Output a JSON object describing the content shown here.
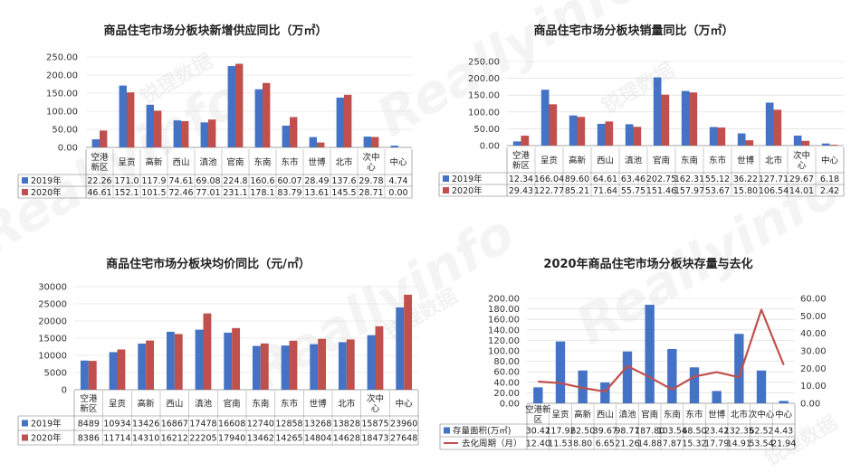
{
  "watermark": {
    "brand": "Reallyinfo",
    "cn": "锐理数据"
  },
  "colors": {
    "blue": "#4472C4",
    "red": "#C0504D",
    "grid": "#d9d9d9"
  },
  "chart_data": [
    {
      "type": "bar",
      "title": "商品住宅市场分板块新增供应同比（万㎡）",
      "categories": [
        "空港新区",
        "呈贡",
        "高新",
        "西山",
        "滇池",
        "官南",
        "东南",
        "东市",
        "世博",
        "北市",
        "次中心",
        "中心"
      ],
      "cat_lines": [
        [
          "空港",
          "新区"
        ],
        [
          "呈贡"
        ],
        [
          "高新"
        ],
        [
          "西山"
        ],
        [
          "滇池"
        ],
        [
          "官南"
        ],
        [
          "东南"
        ],
        [
          "东市"
        ],
        [
          "世博"
        ],
        [
          "北市"
        ],
        [
          "次中",
          "心"
        ],
        [
          "中心"
        ]
      ],
      "series": [
        {
          "name": "2019年",
          "color": "#4472C4",
          "values": [
            22.26,
            171.0,
            117.9,
            74.61,
            69.08,
            224.8,
            160.6,
            60.07,
            28.49,
            137.6,
            29.78,
            4.74
          ],
          "labels": [
            "22.26",
            "171.0",
            "117.9",
            "74.61",
            "69.08",
            "224.8",
            "160.6",
            "60.07",
            "28.49",
            "137.6",
            "29.78",
            "4.74"
          ]
        },
        {
          "name": "2020年",
          "color": "#C0504D",
          "values": [
            46.61,
            152.1,
            101.5,
            72.46,
            77.01,
            231.1,
            178.1,
            83.79,
            13.61,
            145.5,
            28.71,
            0.0
          ],
          "labels": [
            "46.61",
            "152.1",
            "101.5",
            "72.46",
            "77.01",
            "231.1",
            "178.1",
            "83.79",
            "13.61",
            "145.5",
            "28.71",
            "0.00"
          ]
        }
      ],
      "ylim": [
        0,
        250
      ],
      "yticks": [
        "0.00",
        "50.00",
        "100.00",
        "150.00",
        "200.00",
        "250.00"
      ]
    },
    {
      "type": "bar",
      "title": "商品住宅市场分板块销量同比（万㎡）",
      "categories": [
        "空港新区",
        "呈贡",
        "高新",
        "西山",
        "滇池",
        "官南",
        "东南",
        "东市",
        "世博",
        "北市",
        "次中心",
        "中心"
      ],
      "cat_lines": [
        [
          "空港",
          "新区"
        ],
        [
          "呈贡"
        ],
        [
          "高新"
        ],
        [
          "西山"
        ],
        [
          "滇池"
        ],
        [
          "官南"
        ],
        [
          "东南"
        ],
        [
          "东市"
        ],
        [
          "世博"
        ],
        [
          "北市"
        ],
        [
          "次中",
          "心"
        ],
        [
          "中心"
        ]
      ],
      "series": [
        {
          "name": "2019年",
          "color": "#4472C4",
          "values": [
            12.34,
            166.04,
            89.6,
            64.61,
            63.46,
            202.75,
            162.31,
            55.12,
            36.22,
            127.71,
            29.67,
            6.18
          ],
          "labels": [
            "12.34",
            "166.04",
            "89.60",
            "64.61",
            "63.46",
            "202.75",
            "162.31",
            "55.12",
            "36.22",
            "127.71",
            "29.67",
            "6.18"
          ]
        },
        {
          "name": "2020年",
          "color": "#C0504D",
          "values": [
            29.43,
            122.77,
            85.21,
            71.64,
            55.75,
            151.46,
            157.97,
            53.67,
            15.8,
            106.54,
            14.01,
            2.42
          ],
          "labels": [
            "29.43",
            "122.77",
            "85.21",
            "71.64",
            "55.75",
            "151.46",
            "157.97",
            "53.67",
            "15.80",
            "106.54",
            "14.01",
            "2.42"
          ]
        }
      ],
      "ylim": [
        0,
        250
      ],
      "yticks": [
        "0.00",
        "50.00",
        "100.00",
        "150.00",
        "200.00",
        "250.00"
      ]
    },
    {
      "type": "bar",
      "title": "商品住宅市场分板块均价同比（元/㎡）",
      "categories": [
        "空港新区",
        "呈贡",
        "高新",
        "西山",
        "滇池",
        "官南",
        "东南",
        "东市",
        "世博",
        "北市",
        "次中心",
        "中心"
      ],
      "cat_lines": [
        [
          "空港",
          "新区"
        ],
        [
          "呈贡"
        ],
        [
          "高新"
        ],
        [
          "西山"
        ],
        [
          "滇池"
        ],
        [
          "官南"
        ],
        [
          "东南"
        ],
        [
          "东市"
        ],
        [
          "世博"
        ],
        [
          "北市"
        ],
        [
          "次中",
          "心"
        ],
        [
          "中心"
        ]
      ],
      "series": [
        {
          "name": "2019年",
          "color": "#4472C4",
          "values": [
            8489,
            10934,
            13426,
            16867,
            17478,
            16608,
            12740,
            12858,
            13268,
            13828,
            15875,
            23960
          ],
          "labels": [
            "8489",
            "10934",
            "13426",
            "16867",
            "17478",
            "16608",
            "12740",
            "12858",
            "13268",
            "13828",
            "15875",
            "23960"
          ]
        },
        {
          "name": "2020年",
          "color": "#C0504D",
          "values": [
            8386,
            11714,
            14310,
            16212,
            22205,
            17940,
            13462,
            14265,
            14804,
            14628,
            18473,
            27648
          ],
          "labels": [
            "8386",
            "11714",
            "14310",
            "16212",
            "22205",
            "17940",
            "13462",
            "14265",
            "14804",
            "14628",
            "18473",
            "27648"
          ]
        }
      ],
      "ylim": [
        0,
        30000
      ],
      "yticks": [
        "0",
        "5000",
        "10000",
        "15000",
        "20000",
        "25000",
        "30000"
      ]
    },
    {
      "type": "bar+line",
      "title": "2020年商品住宅市场分板块存量与去化",
      "categories": [
        "空港新区",
        "呈贡",
        "高新",
        "西山",
        "滇池",
        "官南",
        "东南",
        "东市",
        "世博",
        "北市",
        "次中心",
        "中心"
      ],
      "cat_lines": [
        [
          "空港新",
          "区"
        ],
        [
          "呈贡"
        ],
        [
          "高新"
        ],
        [
          "西山"
        ],
        [
          "滇池"
        ],
        [
          "官南"
        ],
        [
          "东南"
        ],
        [
          "东市"
        ],
        [
          "世博"
        ],
        [
          "北市"
        ],
        [
          "次中心"
        ],
        [
          "中心"
        ]
      ],
      "series": [
        {
          "name": "存量面积(万㎡)",
          "type": "bar",
          "color": "#4472C4",
          "axis": "left",
          "values": [
            30.42,
            117.92,
            62.5,
            39.67,
            98.77,
            187.8,
            103.54,
            68.5,
            23.42,
            132.35,
            62.52,
            4.43
          ],
          "labels": [
            "30.42",
            "117.92",
            "62.50",
            "39.67",
            "98.77",
            "187.80",
            "103.54",
            "68.50",
            "23.42",
            "132.35",
            "62.52",
            "4.43"
          ]
        },
        {
          "name": "去化周期（月）",
          "type": "line",
          "color": "#C0504D",
          "axis": "right",
          "values": [
            12.4,
            11.53,
            8.8,
            6.65,
            21.26,
            14.88,
            7.87,
            15.32,
            17.79,
            14.91,
            53.54,
            21.94
          ],
          "labels": [
            "12.40",
            "11.53",
            "8.80",
            "6.65",
            "21.26",
            "14.88",
            "7.87",
            "15.32",
            "17.79",
            "14.91",
            "53.54",
            "21.94"
          ]
        }
      ],
      "ylim": [
        0,
        200
      ],
      "yticks": [
        "0.00",
        "20.00",
        "40.00",
        "60.00",
        "80.00",
        "100.00",
        "120.00",
        "140.00",
        "160.00",
        "180.00",
        "200.00"
      ],
      "y2lim": [
        0,
        60
      ],
      "y2ticks": [
        "0.00",
        "10.00",
        "20.00",
        "30.00",
        "40.00",
        "50.00",
        "60.00"
      ]
    }
  ]
}
